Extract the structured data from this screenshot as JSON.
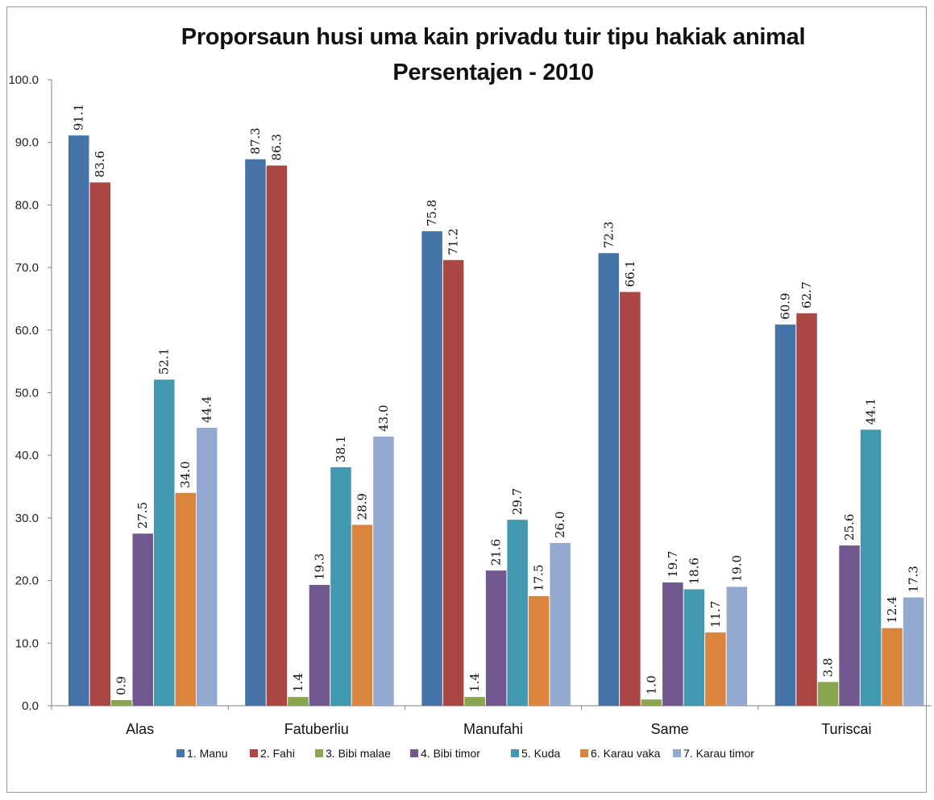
{
  "chart_data": {
    "type": "bar",
    "title": "Proporsaun husi uma kain privadu tuir tipu hakiak animal",
    "subtitle": "Persentajen - 2010",
    "categories": [
      "Alas",
      "Fatuberliu",
      "Manufahi",
      "Same",
      "Turiscai"
    ],
    "series": [
      {
        "name": "1. Manu",
        "color": "#4572A7",
        "values": [
          91.1,
          87.3,
          75.8,
          72.3,
          60.9
        ]
      },
      {
        "name": "2. Fahi",
        "color": "#AA4643",
        "values": [
          83.6,
          86.3,
          71.2,
          66.1,
          62.7
        ]
      },
      {
        "name": "3. Bibi malae",
        "color": "#89A54E",
        "values": [
          0.9,
          1.4,
          1.4,
          1.0,
          3.8
        ]
      },
      {
        "name": "4. Bibi timor",
        "color": "#71588F",
        "values": [
          27.5,
          19.3,
          21.6,
          19.7,
          25.6
        ]
      },
      {
        "name": "5. Kuda",
        "color": "#4198AF",
        "values": [
          52.1,
          38.1,
          29.7,
          18.6,
          44.1
        ]
      },
      {
        "name": "6. Karau vaka",
        "color": "#DB843D",
        "values": [
          34.0,
          28.9,
          17.5,
          11.7,
          12.4
        ]
      },
      {
        "name": "7. Karau timor",
        "color": "#93A9CF",
        "values": [
          44.4,
          43.0,
          26.0,
          19.0,
          17.3
        ]
      }
    ],
    "y_ticks": [
      "0.0",
      "10.0",
      "20.0",
      "30.0",
      "40.0",
      "50.0",
      "60.0",
      "70.0",
      "80.0",
      "90.0",
      "100.0"
    ],
    "ylim": [
      0,
      100
    ],
    "grid": false,
    "legend_position": "bottom",
    "data_labels": true
  }
}
